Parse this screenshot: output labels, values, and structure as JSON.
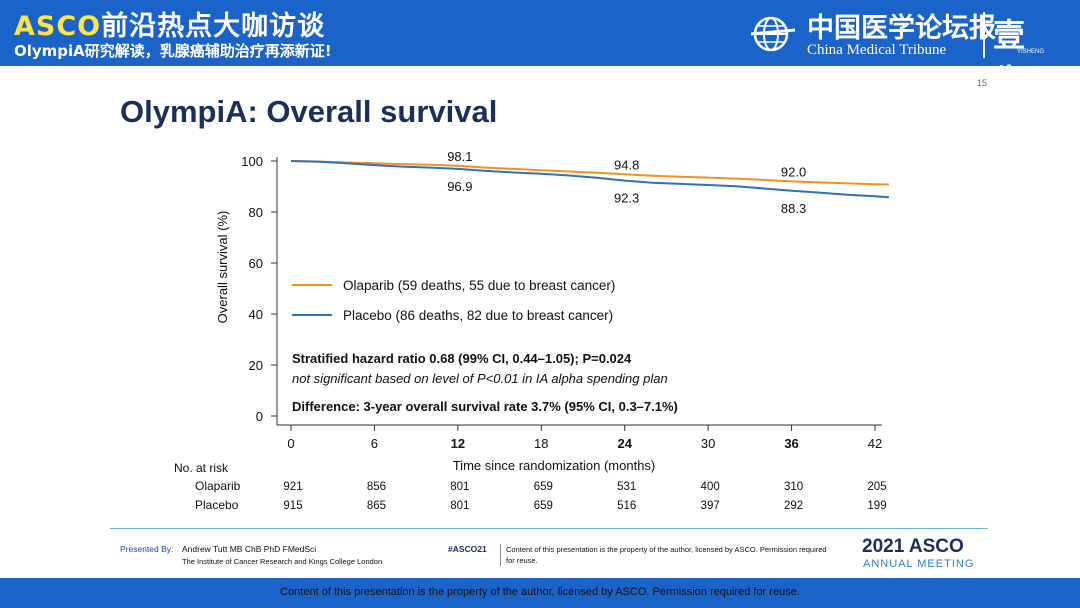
{
  "header": {
    "title_asco": "ASCO",
    "title_rest": "前沿热点大咖访谈",
    "subtitle": "OlympiA研究解读，乳腺癌辅助治疗再添新证!",
    "logo_cn": "中国医学论坛报",
    "logo_en": "China Medical Tribune",
    "logo_brand": "壹生",
    "logo_brand_small": "YISHENG"
  },
  "slide": {
    "page_number": "15",
    "title": "OlympiA: Overall survival"
  },
  "chart_data": {
    "type": "line",
    "ylabel": "Overall survival (%)",
    "xlabel": "Time since randomization (months)",
    "x_ticks": [
      0,
      6,
      12,
      18,
      24,
      30,
      36,
      42
    ],
    "x_bold_ticks": [
      12,
      24,
      36
    ],
    "y_ticks": [
      0,
      20,
      40,
      60,
      80,
      100
    ],
    "xlim": [
      0,
      43
    ],
    "ylim": [
      0,
      100
    ],
    "series": [
      {
        "name": "Olaparib (59 deaths, 55 due to breast cancer)",
        "color": "#f2921d",
        "points": [
          [
            0,
            100
          ],
          [
            2,
            99.8
          ],
          [
            4,
            99.4
          ],
          [
            6,
            99.1
          ],
          [
            8,
            98.8
          ],
          [
            10,
            98.5
          ],
          [
            12,
            98.1
          ],
          [
            14,
            97.4
          ],
          [
            16,
            96.9
          ],
          [
            18,
            96.4
          ],
          [
            20,
            95.9
          ],
          [
            22,
            95.4
          ],
          [
            24,
            94.8
          ],
          [
            26,
            94.2
          ],
          [
            28,
            93.8
          ],
          [
            30,
            93.5
          ],
          [
            32,
            93.1
          ],
          [
            34,
            92.6
          ],
          [
            36,
            92.0
          ],
          [
            38,
            91.6
          ],
          [
            40,
            91.2
          ],
          [
            42,
            90.9
          ],
          [
            43,
            90.8
          ]
        ]
      },
      {
        "name": "Placebo (86 deaths, 82 due to breast cancer)",
        "color": "#2e72b9",
        "points": [
          [
            0,
            100
          ],
          [
            2,
            99.7
          ],
          [
            4,
            99.1
          ],
          [
            6,
            98.4
          ],
          [
            8,
            97.8
          ],
          [
            10,
            97.4
          ],
          [
            12,
            96.9
          ],
          [
            14,
            96.1
          ],
          [
            16,
            95.5
          ],
          [
            18,
            95.0
          ],
          [
            20,
            94.3
          ],
          [
            22,
            93.4
          ],
          [
            24,
            92.3
          ],
          [
            26,
            91.5
          ],
          [
            28,
            91.0
          ],
          [
            30,
            90.6
          ],
          [
            32,
            90.1
          ],
          [
            34,
            89.2
          ],
          [
            36,
            88.3
          ],
          [
            38,
            87.6
          ],
          [
            40,
            86.8
          ],
          [
            42,
            86.2
          ],
          [
            43,
            85.8
          ]
        ]
      }
    ],
    "annotations": [
      {
        "x": 12,
        "text": "98.1",
        "pos": "above"
      },
      {
        "x": 12,
        "text": "96.9",
        "pos": "below"
      },
      {
        "x": 24,
        "text": "94.8",
        "pos": "above"
      },
      {
        "x": 24,
        "text": "92.3",
        "pos": "below"
      },
      {
        "x": 36,
        "text": "92.0",
        "pos": "above"
      },
      {
        "x": 36,
        "text": "88.3",
        "pos": "below"
      }
    ],
    "legend_placement": "center-left",
    "hazard_line1": "Stratified hazard ratio 0.68 (99% CI, 0.44–1.05); P=0.024",
    "hazard_line2": "not significant based on level of P<0.01 in IA alpha spending plan",
    "difference": "Difference: 3-year overall survival rate 3.7% (95% CI, 0.3–7.1%)",
    "risk_table": {
      "label": "No. at risk",
      "rows": [
        {
          "name": "Olaparib",
          "values": [
            "921",
            "856",
            "801",
            "659",
            "531",
            "400",
            "310",
            "205"
          ]
        },
        {
          "name": "Placebo",
          "values": [
            "915",
            "865",
            "801",
            "659",
            "516",
            "397",
            "292",
            "199"
          ]
        }
      ]
    }
  },
  "presenter": {
    "label": "Presented By:",
    "name": "Andrew Tutt MB ChB PhD FMedSci",
    "institution": "The Institute of Cancer Research and Kings College London"
  },
  "meeting": {
    "hashtag": "#ASCO21",
    "content_note": "Content of this presentation is the property of the author, licensed by ASCO. Permission required for reuse.",
    "year_asco": "2021 ASCO",
    "annual": "ANNUAL MEETING"
  },
  "footer": {
    "text": "Content of this presentation is the property of the author, licensed by ASCO. Permission required for reuse."
  }
}
